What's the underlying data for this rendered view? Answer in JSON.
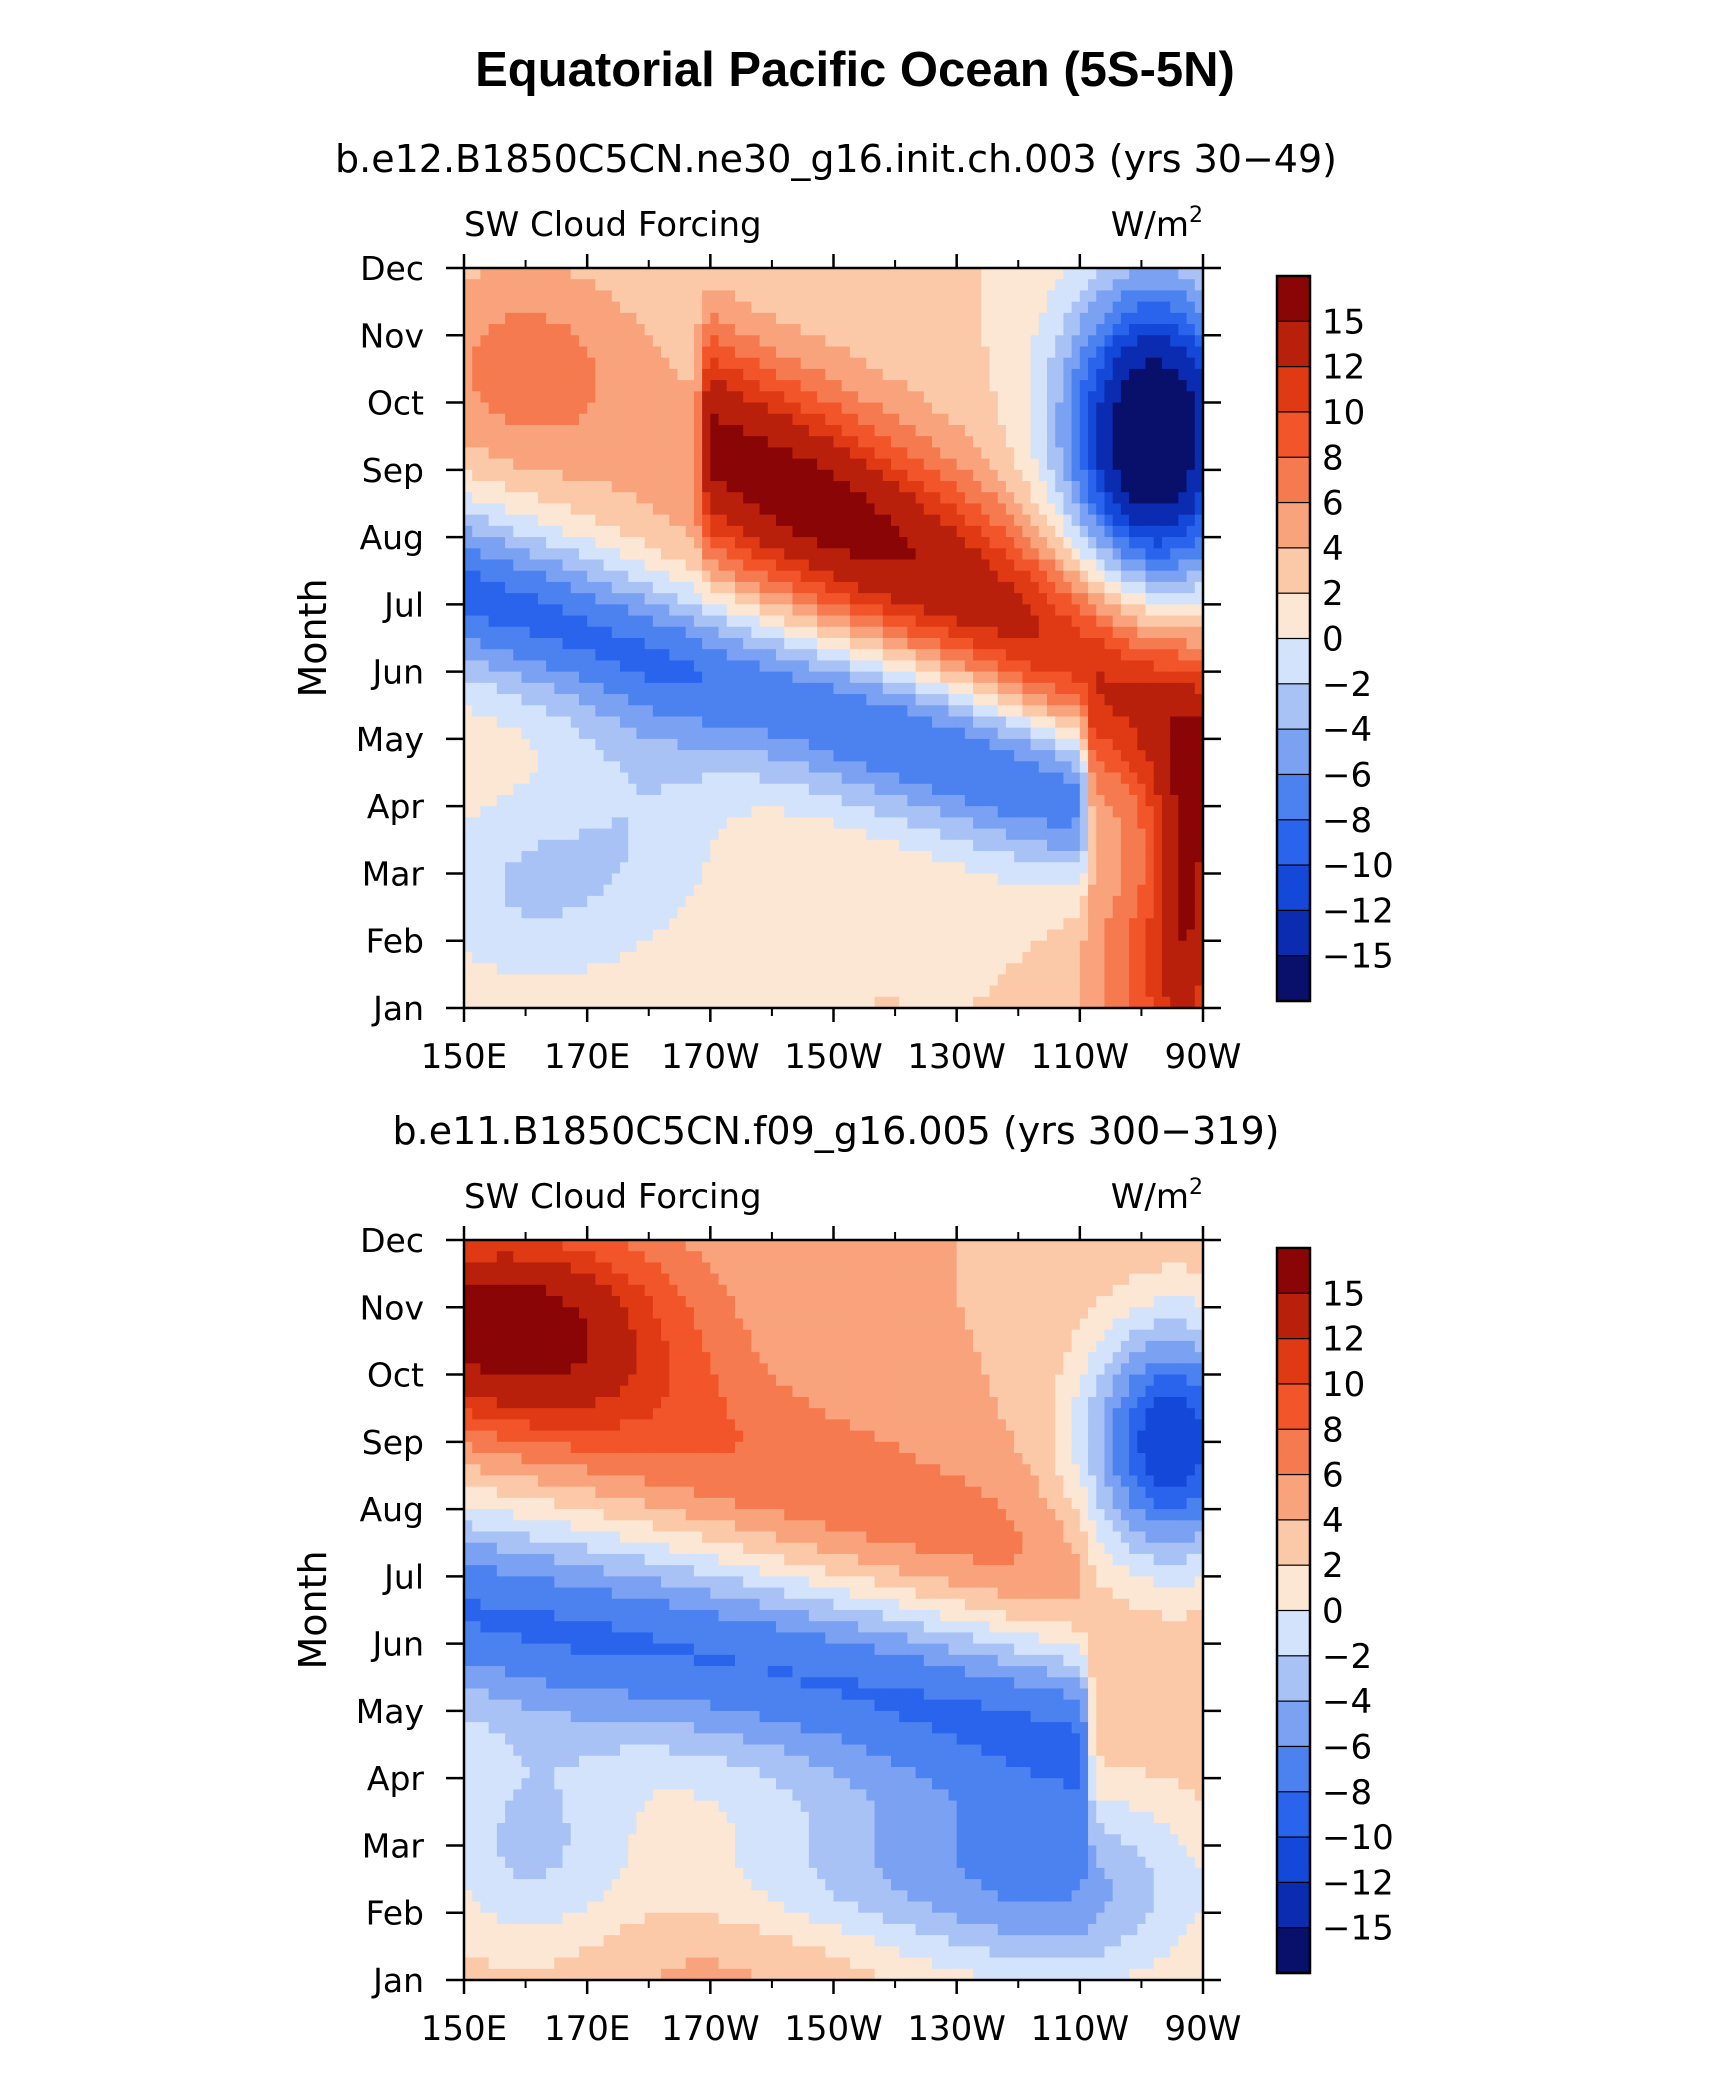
{
  "title": "Equatorial Pacific Ocean (5S-5N)",
  "colors": {
    "levels": [
      "#08106b",
      "#0b2cb0",
      "#1448d8",
      "#2a63ec",
      "#4b82f0",
      "#7ba1f2",
      "#a9c2f6",
      "#d3e3fb",
      "#fbe7d3",
      "#fbc9a8",
      "#f9a37c",
      "#f67a4f",
      "#f2552a",
      "#df3a14",
      "#b8200c",
      "#8a0505"
    ]
  },
  "chart_data": [
    {
      "type": "heatmap",
      "subtitle": "b.e12.B1850C5CN.ne30_g16.init.ch.003 (yrs 30−49)",
      "left_label": "SW Cloud Forcing",
      "right_label": "W/m",
      "right_label_sup": "2",
      "ylabel": "Month",
      "x_ticks": [
        "150E",
        "170E",
        "170W",
        "150W",
        "130W",
        "110W",
        "90W"
      ],
      "y_ticks": [
        "Jan",
        "Feb",
        "Mar",
        "Apr",
        "May",
        "Jun",
        "Jul",
        "Aug",
        "Sep",
        "Oct",
        "Nov",
        "Dec"
      ],
      "xlim": [
        150,
        270
      ],
      "ylim": [
        1,
        12
      ],
      "colorbar_labels": [
        "15",
        "12",
        "10",
        "8",
        "6",
        "4",
        "2",
        "0",
        "−2",
        "−4",
        "−6",
        "−8",
        "−10",
        "−12",
        "−15"
      ],
      "grid": false
    },
    {
      "type": "heatmap",
      "subtitle": "b.e11.B1850C5CN.f09_g16.005 (yrs 300−319)",
      "left_label": "SW Cloud Forcing",
      "right_label": "W/m",
      "right_label_sup": "2",
      "ylabel": "Month",
      "x_ticks": [
        "150E",
        "170E",
        "170W",
        "150W",
        "130W",
        "110W",
        "90W"
      ],
      "y_ticks": [
        "Jan",
        "Feb",
        "Mar",
        "Apr",
        "May",
        "Jun",
        "Jul",
        "Aug",
        "Sep",
        "Oct",
        "Nov",
        "Dec"
      ],
      "xlim": [
        150,
        270
      ],
      "ylim": [
        1,
        12
      ],
      "colorbar_labels": [
        "15",
        "12",
        "10",
        "8",
        "6",
        "4",
        "2",
        "0",
        "−2",
        "−4",
        "−6",
        "−8",
        "−10",
        "−12",
        "−15"
      ],
      "grid": false
    }
  ]
}
